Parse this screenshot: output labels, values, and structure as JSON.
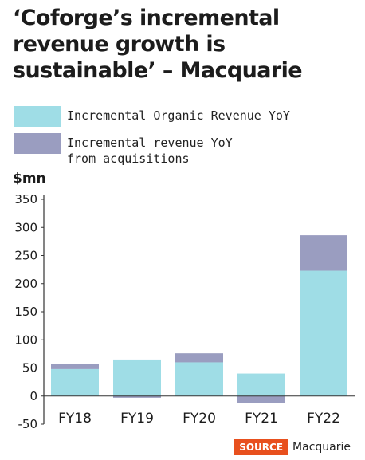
{
  "title": "‘Coforge’s incremental revenue growth is sustainable’ – Macquarie",
  "source": {
    "tag": "SOURCE",
    "text": "Macquarie"
  },
  "colors": {
    "organic": "#9fdde6",
    "acquisitions": "#9a9dc0",
    "axis": "#333333"
  },
  "chart_data": {
    "type": "bar",
    "stacked": true,
    "categories": [
      "FY18",
      "FY19",
      "FY20",
      "FY21",
      "FY22"
    ],
    "series": [
      {
        "name": "Incremental Organic Revenue YoY",
        "values": [
          48,
          65,
          60,
          40,
          223
        ]
      },
      {
        "name": "Incremental revenue YoY\nfrom acquisitions",
        "values": [
          9,
          -3,
          16,
          -13,
          63
        ]
      }
    ],
    "ylabel": "$mn",
    "ylim": [
      -50,
      350
    ],
    "yticks": [
      -50,
      0,
      50,
      100,
      150,
      200,
      250,
      300,
      350
    ],
    "grid": false,
    "legend": "top-left"
  }
}
